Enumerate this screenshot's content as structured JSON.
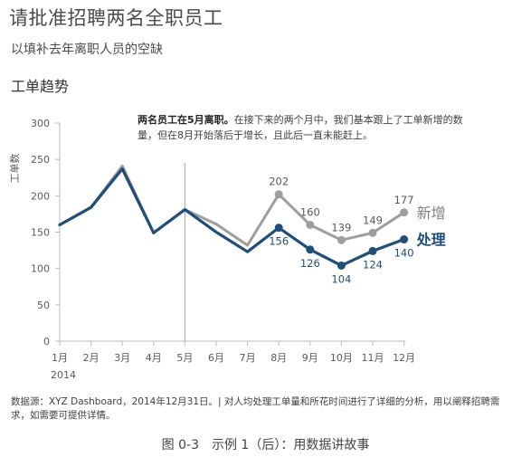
{
  "header": {
    "title": "请批准招聘两名全职员工",
    "subtitle": "以填补去年离职人员的空缺",
    "section": "工单趋势"
  },
  "annotation": {
    "bold": "两名员工在5月离职。",
    "text": "在接下来的两个月中，我们基本跟上了工单新增的数量，但在8月开始落后于增长，且此后一直未能赶上。"
  },
  "source": "数据源：XYZ Dashboard，2014年12月31日。| 对人均处理工单量和所花时间进行了详细的分析，用以阐释招聘需求，如需要可提供详情。",
  "caption": "图 0-3　示例 1（后）：用数据讲故事",
  "chart_data": {
    "type": "line",
    "ylabel": "工单数",
    "year_label": "2014",
    "categories": [
      "1月",
      "2月",
      "3月",
      "4月",
      "5月",
      "6月",
      "7月",
      "8月",
      "9月",
      "10月",
      "11月",
      "12月"
    ],
    "ylim": [
      0,
      300
    ],
    "yticks": [
      0,
      50,
      100,
      150,
      200,
      250,
      300
    ],
    "marker_line_at": "5月",
    "series": [
      {
        "name": "新增",
        "color": "#9e9e9e",
        "values": [
          160,
          184,
          241,
          149,
          181,
          161,
          132,
          202,
          160,
          139,
          149,
          177
        ],
        "labeled_from": 7
      },
      {
        "name": "处理",
        "color": "#1f4e79",
        "values": [
          160,
          184,
          237,
          149,
          181,
          150,
          123,
          156,
          126,
          104,
          124,
          140
        ],
        "labeled_from": 7
      }
    ]
  }
}
